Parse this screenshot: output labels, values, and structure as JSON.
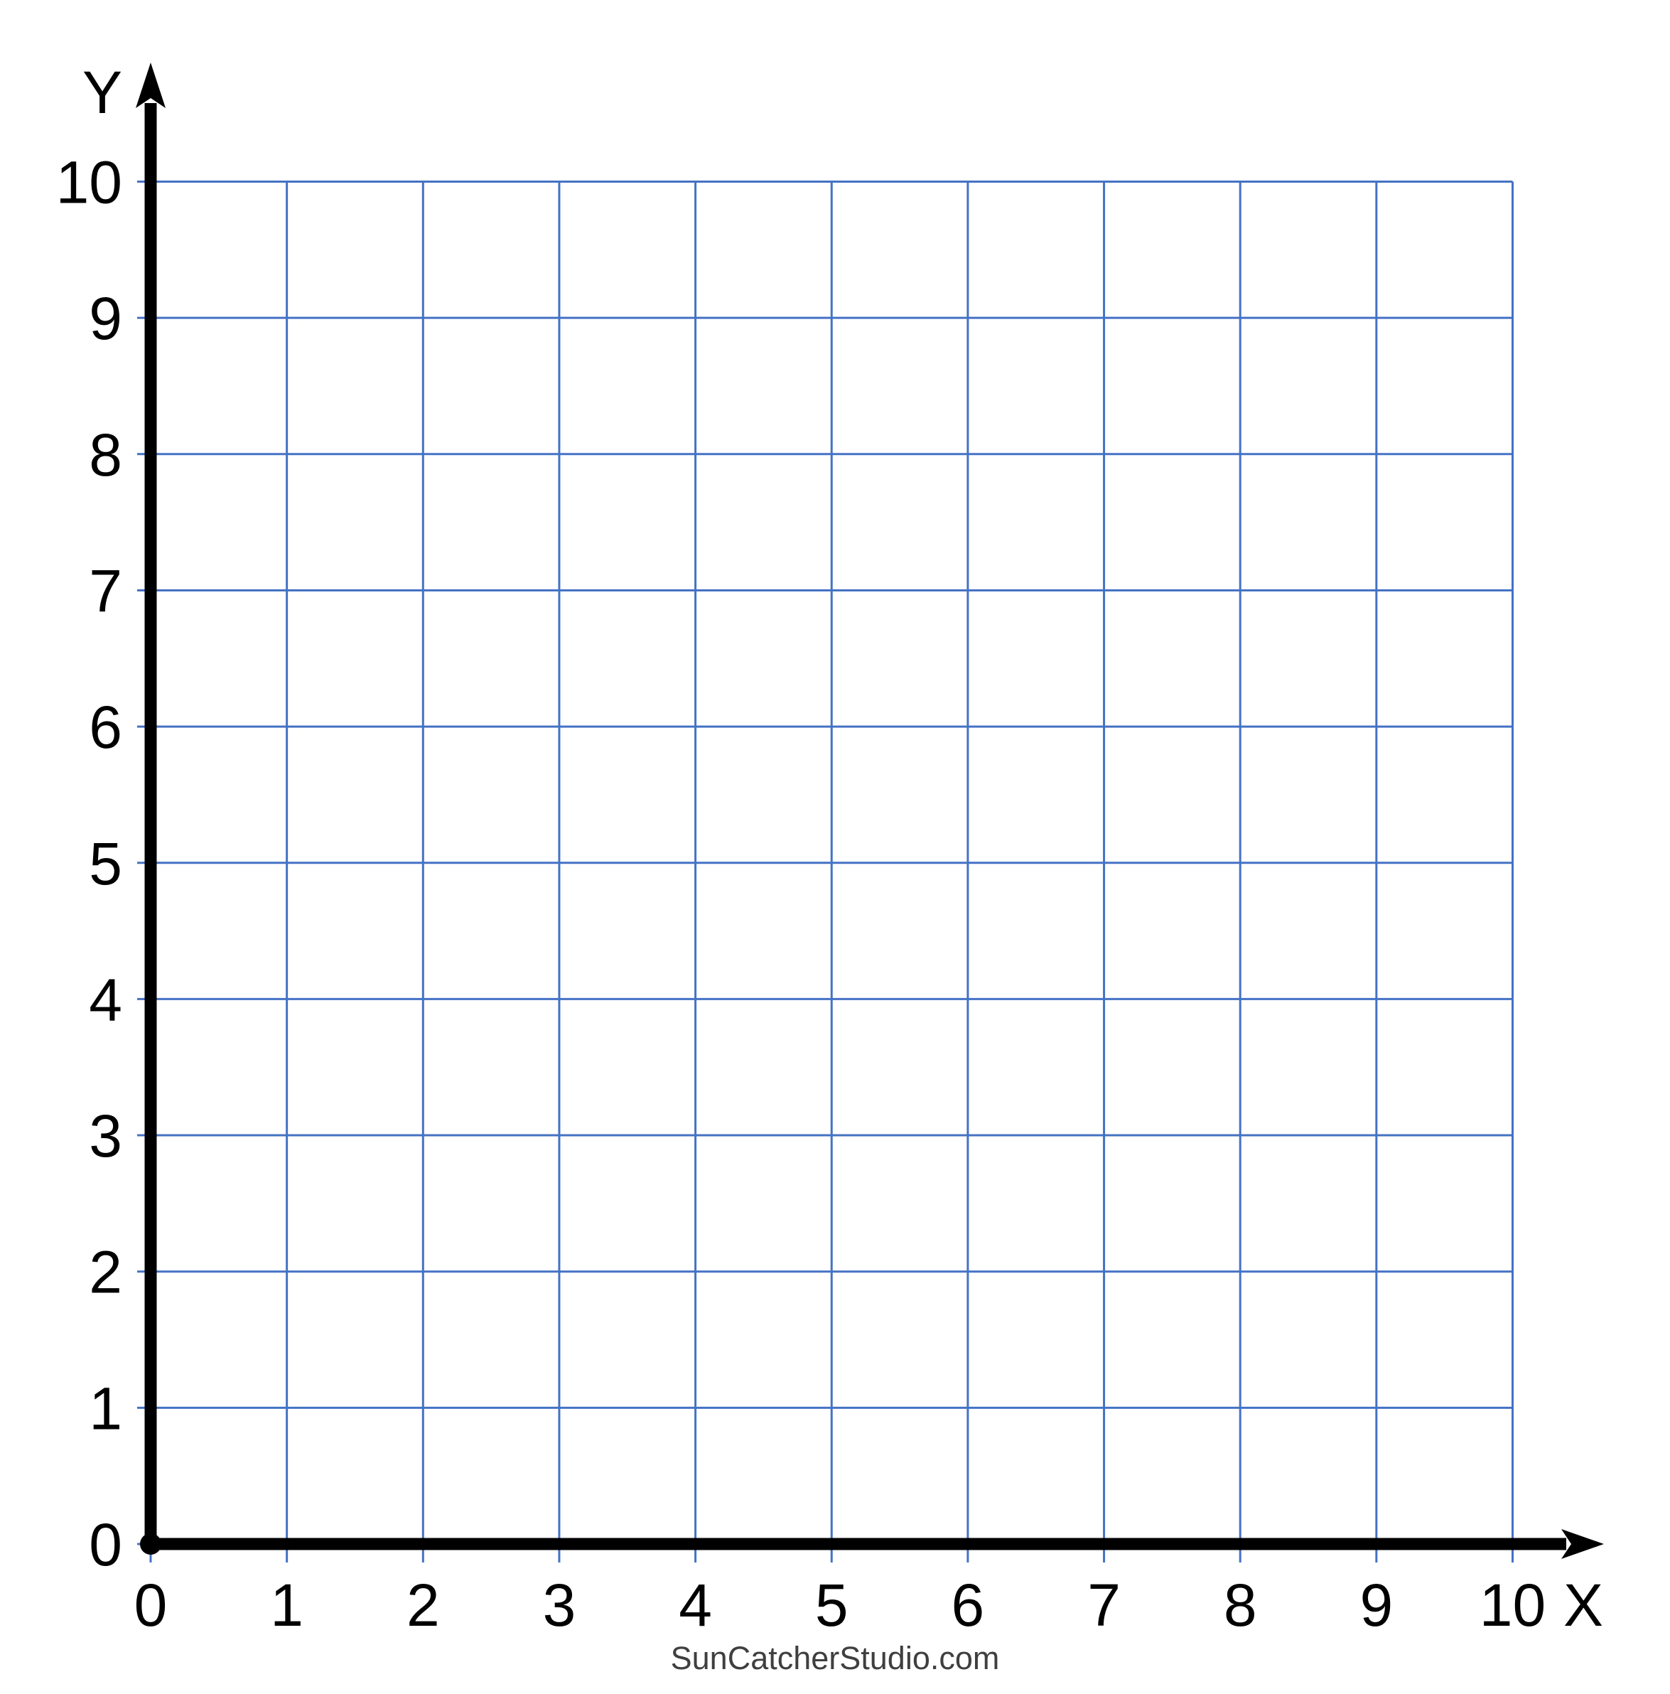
{
  "watermark": {
    "text": "SunCatcherStudio.com",
    "color": "#3f3f3f"
  },
  "chart_data": {
    "type": "scatter",
    "title": "",
    "subtitle": "",
    "xlabel": "X",
    "ylabel": "Y",
    "xlim": [
      0,
      10
    ],
    "ylim": [
      0,
      10
    ],
    "x_ticks": [
      0,
      1,
      2,
      3,
      4,
      5,
      6,
      7,
      8,
      9,
      10
    ],
    "y_ticks": [
      0,
      1,
      2,
      3,
      4,
      5,
      6,
      7,
      8,
      9,
      10
    ],
    "grid": true,
    "legend": false,
    "series": [],
    "note": "blank first-quadrant graph paper, no plotted data points",
    "grid_color": "#4472c4",
    "axis_color": "#000000",
    "tick_label_color": "#000000"
  }
}
